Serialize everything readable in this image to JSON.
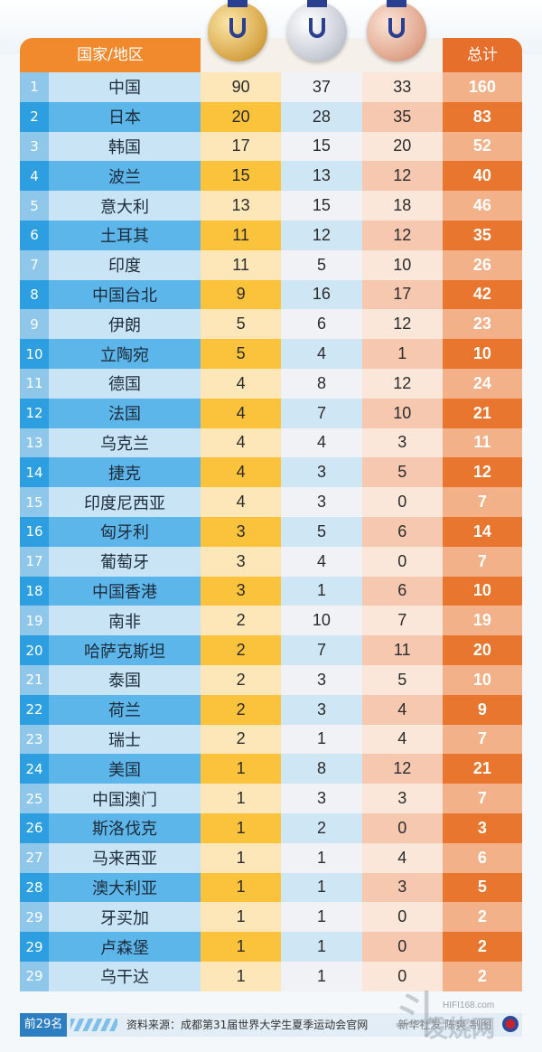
{
  "header": {
    "country_col": "国家/地区",
    "total_col": "总计"
  },
  "rows": [
    {
      "rank": "1",
      "country": "中国",
      "gold": "90",
      "silver": "37",
      "bronze": "33",
      "total": "160"
    },
    {
      "rank": "2",
      "country": "日本",
      "gold": "20",
      "silver": "28",
      "bronze": "35",
      "total": "83"
    },
    {
      "rank": "3",
      "country": "韩国",
      "gold": "17",
      "silver": "15",
      "bronze": "20",
      "total": "52"
    },
    {
      "rank": "4",
      "country": "波兰",
      "gold": "15",
      "silver": "13",
      "bronze": "12",
      "total": "40"
    },
    {
      "rank": "5",
      "country": "意大利",
      "gold": "13",
      "silver": "15",
      "bronze": "18",
      "total": "46"
    },
    {
      "rank": "6",
      "country": "土耳其",
      "gold": "11",
      "silver": "12",
      "bronze": "12",
      "total": "35"
    },
    {
      "rank": "7",
      "country": "印度",
      "gold": "11",
      "silver": "5",
      "bronze": "10",
      "total": "26"
    },
    {
      "rank": "8",
      "country": "中国台北",
      "gold": "9",
      "silver": "16",
      "bronze": "17",
      "total": "42"
    },
    {
      "rank": "9",
      "country": "伊朗",
      "gold": "5",
      "silver": "6",
      "bronze": "12",
      "total": "23"
    },
    {
      "rank": "10",
      "country": "立陶宛",
      "gold": "5",
      "silver": "4",
      "bronze": "1",
      "total": "10"
    },
    {
      "rank": "11",
      "country": "德国",
      "gold": "4",
      "silver": "8",
      "bronze": "12",
      "total": "24"
    },
    {
      "rank": "12",
      "country": "法国",
      "gold": "4",
      "silver": "7",
      "bronze": "10",
      "total": "21"
    },
    {
      "rank": "13",
      "country": "乌克兰",
      "gold": "4",
      "silver": "4",
      "bronze": "3",
      "total": "11"
    },
    {
      "rank": "14",
      "country": "捷克",
      "gold": "4",
      "silver": "3",
      "bronze": "5",
      "total": "12"
    },
    {
      "rank": "15",
      "country": "印度尼西亚",
      "gold": "4",
      "silver": "3",
      "bronze": "0",
      "total": "7"
    },
    {
      "rank": "16",
      "country": "匈牙利",
      "gold": "3",
      "silver": "5",
      "bronze": "6",
      "total": "14"
    },
    {
      "rank": "17",
      "country": "葡萄牙",
      "gold": "3",
      "silver": "4",
      "bronze": "0",
      "total": "7"
    },
    {
      "rank": "18",
      "country": "中国香港",
      "gold": "3",
      "silver": "1",
      "bronze": "6",
      "total": "10"
    },
    {
      "rank": "19",
      "country": "南非",
      "gold": "2",
      "silver": "10",
      "bronze": "7",
      "total": "19"
    },
    {
      "rank": "20",
      "country": "哈萨克斯坦",
      "gold": "2",
      "silver": "7",
      "bronze": "11",
      "total": "20"
    },
    {
      "rank": "21",
      "country": "泰国",
      "gold": "2",
      "silver": "3",
      "bronze": "5",
      "total": "10"
    },
    {
      "rank": "22",
      "country": "荷兰",
      "gold": "2",
      "silver": "3",
      "bronze": "4",
      "total": "9"
    },
    {
      "rank": "23",
      "country": "瑞士",
      "gold": "2",
      "silver": "1",
      "bronze": "4",
      "total": "7"
    },
    {
      "rank": "24",
      "country": "美国",
      "gold": "1",
      "silver": "8",
      "bronze": "12",
      "total": "21"
    },
    {
      "rank": "25",
      "country": "中国澳门",
      "gold": "1",
      "silver": "3",
      "bronze": "3",
      "total": "7"
    },
    {
      "rank": "26",
      "country": "斯洛伐克",
      "gold": "1",
      "silver": "2",
      "bronze": "0",
      "total": "3"
    },
    {
      "rank": "27",
      "country": "马来西亚",
      "gold": "1",
      "silver": "1",
      "bronze": "4",
      "total": "6"
    },
    {
      "rank": "28",
      "country": "澳大利亚",
      "gold": "1",
      "silver": "1",
      "bronze": "3",
      "total": "5"
    },
    {
      "rank": "29",
      "country": "牙买加",
      "gold": "1",
      "silver": "1",
      "bronze": "0",
      "total": "2"
    },
    {
      "rank": "29",
      "country": "卢森堡",
      "gold": "1",
      "silver": "1",
      "bronze": "0",
      "total": "2"
    },
    {
      "rank": "29",
      "country": "乌干达",
      "gold": "1",
      "silver": "1",
      "bronze": "0",
      "total": "2"
    }
  ],
  "footer": {
    "top_label": "前29名",
    "source": "资料来源：成都第31届世界大学生夏季运动会官网",
    "credit": "新华社发 陈爽 制图"
  },
  "watermark": {
    "url": "HIFI168.com",
    "text": "发烧网"
  }
}
